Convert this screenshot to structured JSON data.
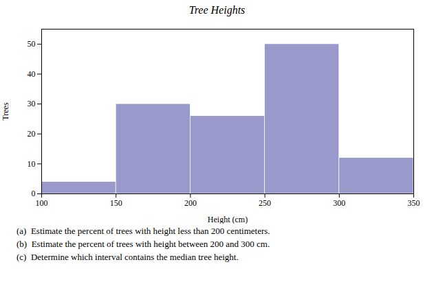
{
  "chart_data": {
    "type": "histogram",
    "title": "Tree Heights",
    "xlabel": "Height (cm)",
    "ylabel": "Trees",
    "bins": [
      100,
      150,
      200,
      250,
      300,
      350
    ],
    "values": [
      4,
      30,
      26,
      50,
      12
    ],
    "color": "#9999cc",
    "xlim": [
      100,
      350
    ],
    "ylim": [
      0,
      55
    ],
    "xticks": [
      100,
      150,
      200,
      250,
      300,
      350
    ],
    "yticks": [
      0,
      10,
      20,
      30,
      40,
      50
    ],
    "grid": false,
    "annotations": [
      "(a)  Estimate the percent of trees with height less than 200 centimeters.",
      "(b)  Estimate the percent of trees with height between 200 and 300 cm.",
      "(c)  Determine which interval contains the median tree height."
    ]
  }
}
